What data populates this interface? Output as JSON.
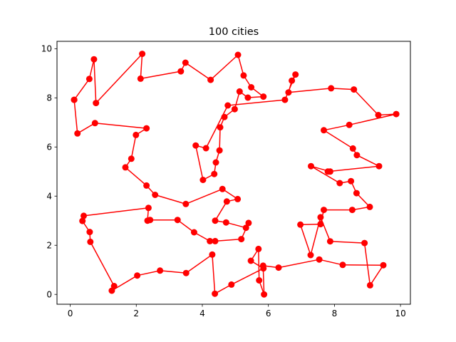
{
  "chart_data": {
    "type": "line",
    "title": "100 cities",
    "xlabel": "",
    "ylabel": "",
    "xlim": [
      -0.4,
      10.3
    ],
    "ylim": [
      -0.4,
      10.3
    ],
    "xticks": [
      0,
      2,
      4,
      6,
      8,
      10
    ],
    "yticks": [
      0,
      2,
      4,
      6,
      8,
      10
    ],
    "grid": false,
    "legend": "none",
    "color": "#ff0000",
    "marker": "circle",
    "series": [
      {
        "x": [
          0.12,
          0.58,
          0.72,
          0.78,
          2.18,
          2.13,
          3.35,
          3.49,
          4.25,
          5.08,
          5.25,
          5.48,
          5.85,
          5.38,
          5.13,
          4.98,
          4.67,
          4.54,
          4.52,
          4.41,
          4.36,
          4.02,
          3.8,
          4.11,
          4.77,
          6.5,
          6.82,
          6.71,
          6.61,
          7.9,
          8.59,
          9.33,
          9.87,
          8.45,
          7.68,
          8.56,
          8.68,
          9.35,
          7.8,
          7.87,
          7.29,
          8.16,
          8.5,
          8.67,
          9.07,
          8.54,
          7.68,
          7.58,
          6.97,
          7.28,
          7.58,
          7.87,
          8.91,
          9.08,
          9.48,
          8.25,
          7.54,
          6.31,
          5.84,
          5.87,
          5.72,
          5.7,
          5.47,
          5.85,
          4.88,
          4.38,
          4.3,
          3.51,
          2.72,
          2.03,
          1.26,
          1.33,
          0.61,
          0.59,
          0.37,
          0.41,
          2.37,
          2.34,
          2.42,
          3.25,
          3.75,
          4.23,
          4.39,
          5.18,
          5.4,
          5.32,
          4.72,
          4.39,
          4.74,
          5.07,
          4.61,
          3.5,
          2.57,
          2.31,
          1.67,
          1.85,
          1.99,
          2.31,
          0.75,
          0.22,
          0.12
        ],
        "y": [
          7.92,
          8.77,
          9.57,
          7.79,
          9.79,
          8.78,
          9.08,
          9.43,
          8.73,
          9.75,
          8.91,
          8.43,
          8.05,
          8.01,
          8.26,
          7.54,
          7.22,
          6.8,
          5.86,
          5.37,
          4.9,
          4.66,
          6.06,
          5.95,
          7.69,
          7.92,
          8.95,
          8.7,
          8.22,
          8.39,
          8.34,
          7.3,
          7.34,
          6.9,
          6.68,
          5.94,
          5.67,
          5.22,
          5.0,
          5.0,
          5.22,
          4.53,
          4.61,
          4.12,
          3.56,
          3.44,
          3.44,
          2.86,
          2.84,
          1.6,
          3.14,
          2.16,
          2.09,
          0.37,
          1.19,
          1.2,
          1.42,
          1.09,
          1.17,
          0.0,
          0.57,
          1.85,
          1.37,
          1.06,
          0.4,
          0.03,
          1.62,
          0.87,
          0.97,
          0.77,
          0.15,
          0.34,
          2.14,
          2.54,
          2.99,
          3.2,
          3.52,
          3.0,
          3.03,
          3.03,
          2.53,
          2.17,
          2.17,
          2.25,
          2.91,
          2.71,
          2.93,
          3.0,
          3.78,
          3.88,
          4.29,
          3.68,
          4.05,
          4.43,
          5.17,
          5.52,
          6.49,
          6.76,
          6.97,
          6.55,
          7.92
        ]
      }
    ]
  }
}
